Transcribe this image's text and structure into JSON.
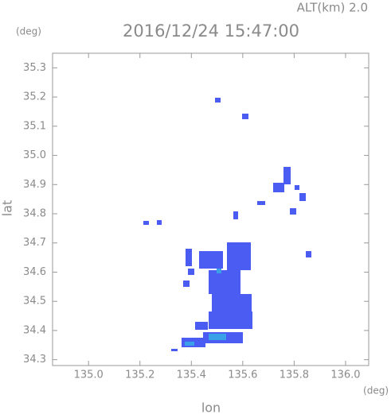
{
  "chart_data": {
    "type": "map",
    "title": "2016/12/24 15:47:00",
    "subtitle": "ALT(km) 2.0",
    "x_unit": "(deg)",
    "y_unit": "(deg)",
    "xlabel": "lon",
    "ylabel": "lat",
    "xlim": [
      134.86,
      136.09
    ],
    "ylim": [
      34.28,
      35.35
    ],
    "xticks": [
      {
        "value": 135.0,
        "label": "135.0"
      },
      135.2,
      135.4,
      135.6,
      135.8,
      {
        "value": 136.0,
        "label": "136.0"
      }
    ],
    "yticks": [
      34.3,
      34.4,
      34.5,
      34.6,
      34.7,
      34.8,
      34.9,
      {
        "value": 35.0,
        "label": "35.0"
      },
      35.1,
      35.2,
      35.3
    ]
  }
}
